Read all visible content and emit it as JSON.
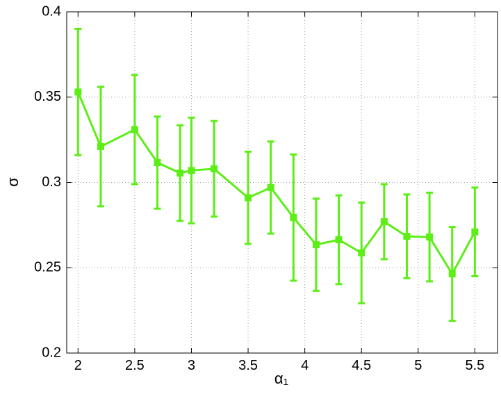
{
  "chart_data": {
    "type": "line",
    "xlabel": "α₁",
    "ylabel": "σ",
    "x": [
      2,
      2.2,
      2.5,
      2.7,
      2.9,
      3.0,
      3.2,
      3.5,
      3.7,
      3.9,
      4.1,
      4.3,
      4.5,
      4.7,
      4.9,
      5.1,
      5.3,
      5.5
    ],
    "series": [
      {
        "color": "#5cee16",
        "values": [
          0.353,
          0.321,
          0.331,
          0.3116,
          0.3055,
          0.307,
          0.308,
          0.291,
          0.297,
          0.2794,
          0.2635,
          0.2664,
          0.2587,
          0.277,
          0.2684,
          0.268,
          0.2464,
          0.271
        ],
        "errors": [
          0.037,
          0.035,
          0.032,
          0.027,
          0.028,
          0.031,
          0.028,
          0.027,
          0.027,
          0.037,
          0.027,
          0.026,
          0.0295,
          0.022,
          0.0245,
          0.026,
          0.0275,
          0.026
        ]
      }
    ],
    "xlim": [
      1.9,
      5.7
    ],
    "ylim": [
      0.2,
      0.4
    ],
    "xticks": [
      2,
      2.5,
      3,
      3.5,
      4,
      4.5,
      5,
      5.5
    ],
    "yticks": [
      0.2,
      0.25,
      0.3,
      0.35,
      0.4
    ],
    "grid": true
  }
}
